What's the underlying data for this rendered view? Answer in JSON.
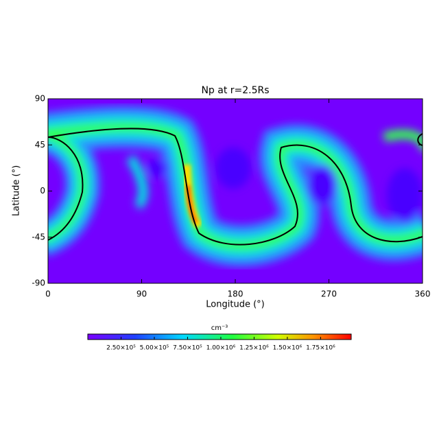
{
  "chart_data": {
    "type": "heatmap",
    "title": "Np at r=2.5Rs",
    "xlabel": "Longitude (°)",
    "ylabel": "Latitude (°)",
    "xlim": [
      0,
      360
    ],
    "xticks": [
      0,
      90,
      180,
      270,
      360
    ],
    "ylim": [
      -90,
      90
    ],
    "yticks": [
      -90,
      -45,
      0,
      45,
      90
    ],
    "colorbar": {
      "label": "cm⁻³",
      "lim": [
        0,
        1980000
      ],
      "ticks": [
        {
          "value": 250000,
          "label": "2.50×10⁵"
        },
        {
          "value": 500000,
          "label": "5.00×10⁵"
        },
        {
          "value": 750000,
          "label": "7.50×10⁵"
        },
        {
          "value": 1000000,
          "label": "1.00×10⁶"
        },
        {
          "value": 1250000,
          "label": "1.25×10⁶"
        },
        {
          "value": 1500000,
          "label": "1.50×10⁶"
        },
        {
          "value": 1750000,
          "label": "1.75×10⁶"
        }
      ]
    }
  }
}
